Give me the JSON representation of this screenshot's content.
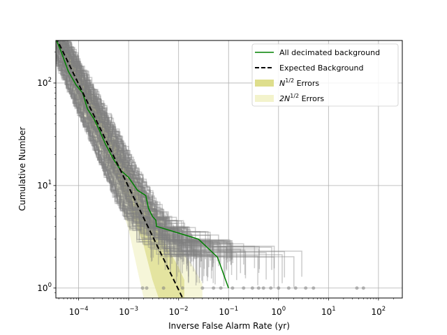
{
  "chart_data": {
    "type": "line",
    "title": "",
    "xlabel": "Inverse False Alarm Rate (yr)",
    "ylabel": "Cumulative Number",
    "xscale": "log",
    "yscale": "log",
    "xlim": [
      3.5e-05,
      300
    ],
    "ylim": [
      0.8,
      260
    ],
    "grid": true,
    "legend_position": "top-right",
    "x_ticks": [
      {
        "value": 0.0001,
        "base": "10",
        "exp": "−4"
      },
      {
        "value": 0.001,
        "base": "10",
        "exp": "−3"
      },
      {
        "value": 0.01,
        "base": "10",
        "exp": "−2"
      },
      {
        "value": 0.1,
        "base": "10",
        "exp": "−1"
      },
      {
        "value": 1,
        "base": "10",
        "exp": "0"
      },
      {
        "value": 10,
        "base": "10",
        "exp": "1"
      },
      {
        "value": 100,
        "base": "10",
        "exp": "2"
      }
    ],
    "y_ticks": [
      {
        "value": 1,
        "base": "10",
        "exp": "0"
      },
      {
        "value": 10,
        "base": "10",
        "exp": "1"
      },
      {
        "value": 100,
        "base": "10",
        "exp": "2"
      }
    ],
    "legend": [
      {
        "key": "decimated",
        "text": "All decimated background",
        "sup": "",
        "suffix": "",
        "color": "#008000",
        "style": "line"
      },
      {
        "key": "expected",
        "text": "Expected Background",
        "sup": "",
        "suffix": "",
        "color": "#000000",
        "style": "dashed"
      },
      {
        "key": "err1",
        "text": "N",
        "sup": "1/2",
        "suffix": " Errors",
        "color": "#dede8c",
        "style": "patch"
      },
      {
        "key": "err2",
        "text": "2N",
        "sup": "1/2",
        "suffix": " Errors",
        "color": "#f3f3cc",
        "style": "patch"
      }
    ],
    "colors": {
      "decimated": "#008000",
      "expected": "#000000",
      "background_trials": "#808080",
      "err1": "#dede8c",
      "err2": "#f3f3cc",
      "grid": "#b0b0b0"
    },
    "series": [
      {
        "name": "All decimated background",
        "points": [
          [
            3.6e-05,
            260
          ],
          [
            4.5e-05,
            200
          ],
          [
            6.2e-05,
            130
          ],
          [
            9e-05,
            95
          ],
          [
            0.00012,
            80
          ],
          [
            0.00015,
            56
          ],
          [
            0.0002,
            45
          ],
          [
            0.00025,
            36
          ],
          [
            0.00035,
            25
          ],
          [
            0.0005,
            18
          ],
          [
            0.0007,
            14
          ],
          [
            0.001,
            12
          ],
          [
            0.0015,
            9
          ],
          [
            0.0022,
            8
          ],
          [
            0.0025,
            6
          ],
          [
            0.003,
            5
          ],
          [
            0.0035,
            4.6
          ],
          [
            0.0036,
            4
          ],
          [
            0.025,
            3
          ],
          [
            0.06,
            2
          ],
          [
            0.1,
            1
          ]
        ]
      },
      {
        "name": "Expected Background",
        "points": [
          [
            3.5e-05,
            280
          ],
          [
            0.012,
            0.8
          ]
        ]
      }
    ],
    "error_bands": [
      {
        "name": "N^1/2 Errors",
        "points": [
          [
            3.5e-05,
            260,
            300
          ],
          [
            0.0001,
            75,
            125
          ],
          [
            0.0003,
            25,
            44
          ],
          [
            0.001,
            6.5,
            13.5
          ],
          [
            0.002,
            2.6,
            6.9
          ],
          [
            0.003,
            1.2,
            4.6
          ],
          [
            0.004,
            0.8,
            3.4
          ],
          [
            0.006,
            0.8,
            2.5
          ],
          [
            0.01,
            0.8,
            1.6
          ],
          [
            0.013,
            0.8,
            1.2
          ]
        ]
      },
      {
        "name": "2N^1/2 Errors",
        "points": [
          [
            3.5e-05,
            240,
            320
          ],
          [
            0.0001,
            60,
            140
          ],
          [
            0.0003,
            19,
            51
          ],
          [
            0.0006,
            8,
            27
          ],
          [
            0.001,
            3.7,
            16.3
          ],
          [
            0.0015,
            1.5,
            11
          ],
          [
            0.002,
            0.8,
            8.5
          ],
          [
            0.003,
            0.8,
            6.3
          ],
          [
            0.005,
            0.8,
            4.5
          ],
          [
            0.01,
            0.8,
            2.6
          ],
          [
            0.02,
            0.8,
            1.6
          ],
          [
            0.03,
            0.8,
            1.1
          ]
        ]
      }
    ],
    "trial_isolated_points": [
      0.0019,
      0.0023,
      0.005,
      0.012,
      0.03,
      0.05,
      0.07,
      0.12,
      0.2,
      0.3,
      0.4,
      0.5,
      0.7,
      1.0,
      1.6,
      2.2,
      3.5,
      5.0,
      37,
      50
    ]
  }
}
